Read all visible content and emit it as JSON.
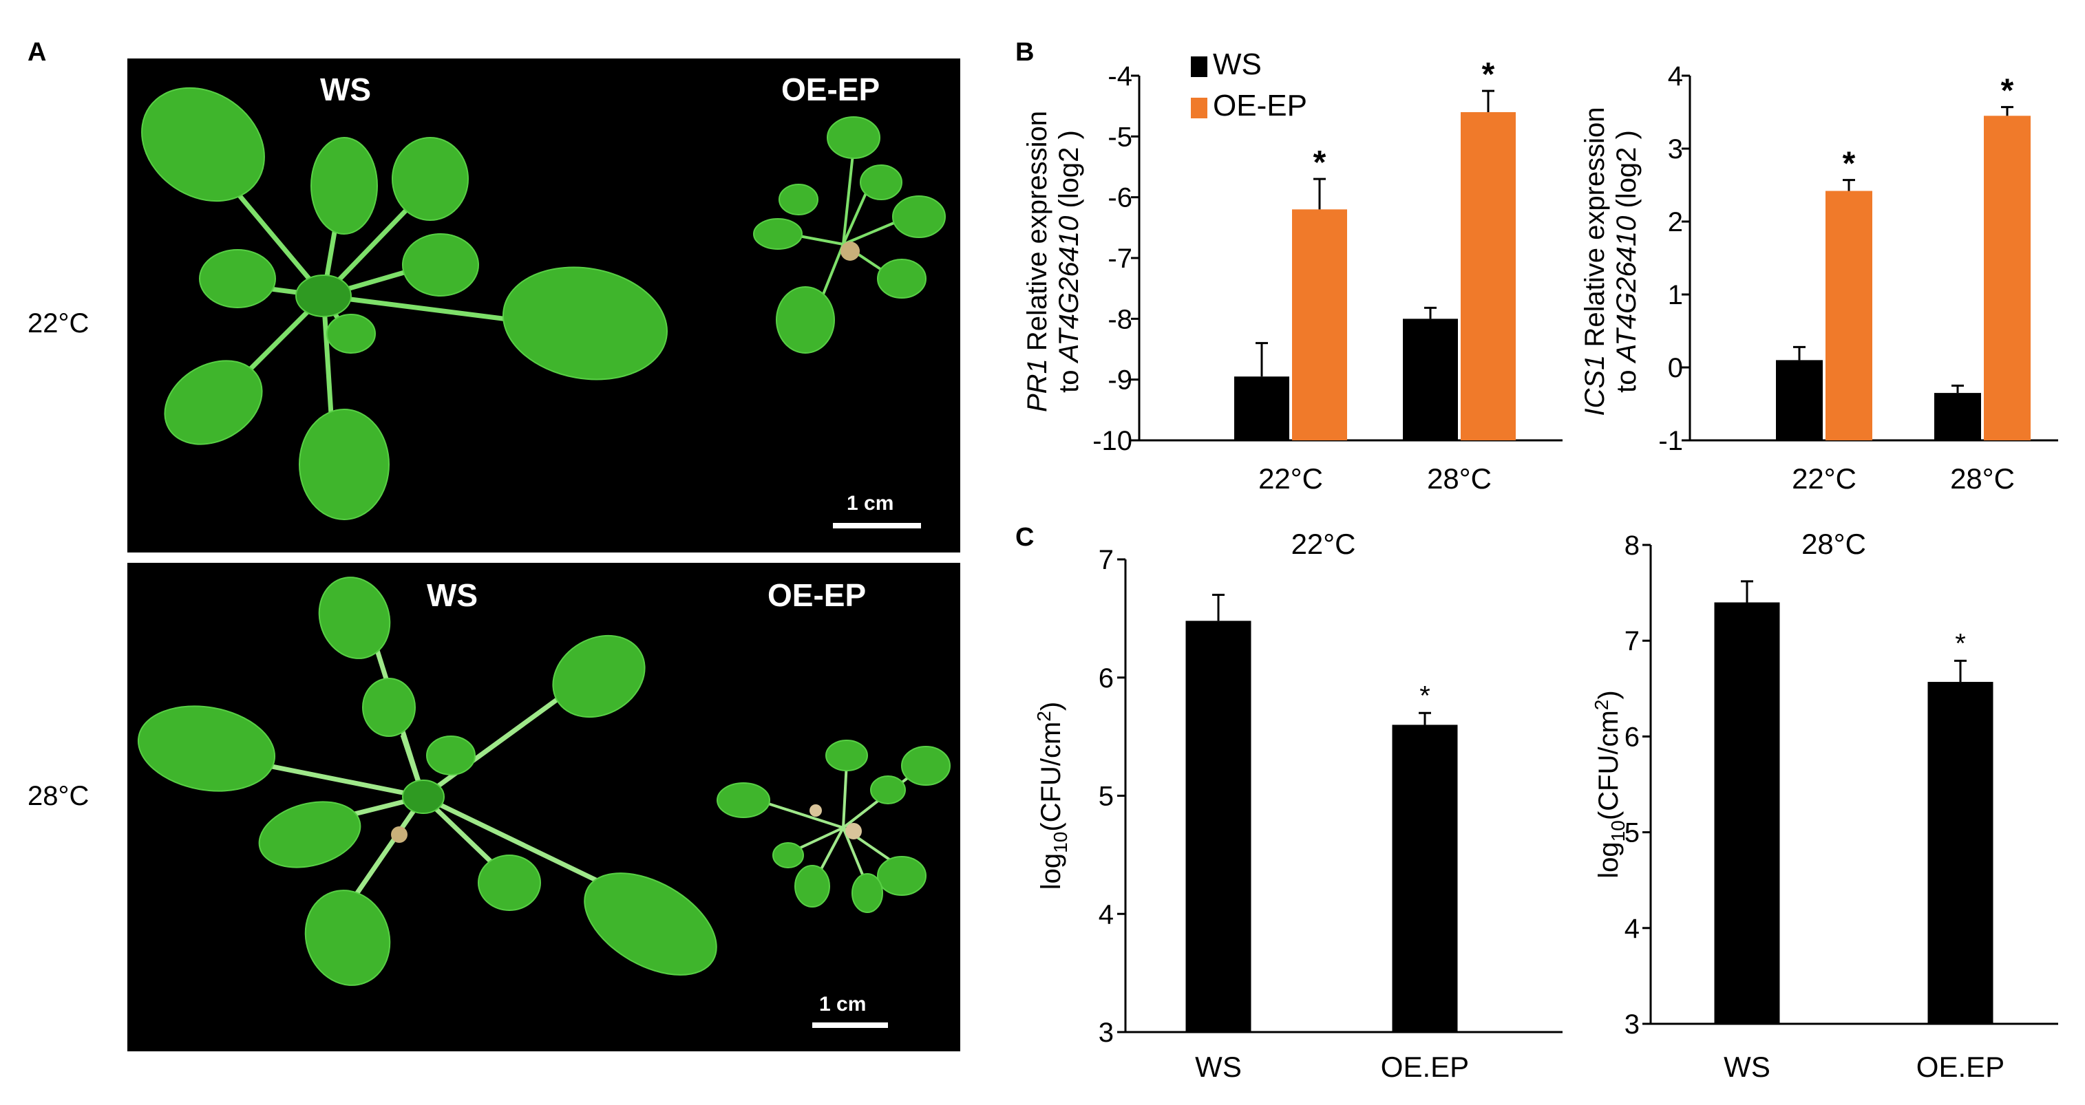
{
  "panel_labels": {
    "a": "A",
    "b": "B",
    "c": "C"
  },
  "panel_a": {
    "row_labels": [
      "22°C",
      "28°C"
    ],
    "column_labels": [
      "WS",
      "OE-EP"
    ],
    "scale_bar_label": "1 cm",
    "plant_color": "#3fb52c"
  },
  "legend": {
    "items": [
      {
        "name": "WS",
        "color": "#000000"
      },
      {
        "name": "OE-EP",
        "color": "#f07a2a"
      }
    ]
  },
  "significance_marker": "*",
  "chart_data": [
    {
      "id": "b1",
      "type": "bar",
      "ylabel_gene": "PR1",
      "ylabel_text": " Relative expression",
      "ylabel_to": "to ",
      "ylabel_ref": "AT4G26410",
      "ylabel_log": " (log2  )",
      "categories": [
        "22°C",
        "28°C"
      ],
      "ylim": [
        -10,
        -4
      ],
      "yticks": [
        -10,
        -9,
        -8,
        -7,
        -6,
        -5,
        -4
      ],
      "ytick_labels": [
        "-10",
        "-9",
        "-8",
        "-7",
        "-6",
        "-5",
        "-4"
      ],
      "series": [
        {
          "name": "WS",
          "color": "#000000",
          "values": [
            -8.95,
            -8.0
          ],
          "errors": [
            0.55,
            0.18
          ],
          "sig": [
            false,
            false
          ]
        },
        {
          "name": "OE-EP",
          "color": "#f07a2a",
          "values": [
            -6.2,
            -4.6
          ],
          "errors": [
            0.5,
            0.35
          ],
          "sig": [
            true,
            true
          ]
        }
      ]
    },
    {
      "id": "b2",
      "type": "bar",
      "ylabel_gene": "ICS1",
      "ylabel_text": " Relative expression",
      "ylabel_to": "to ",
      "ylabel_ref": "AT4G26410",
      "ylabel_log": " (log2  )",
      "categories": [
        "22°C",
        "28°C"
      ],
      "ylim": [
        -1,
        4
      ],
      "yticks": [
        -1,
        0,
        1,
        2,
        3,
        4
      ],
      "ytick_labels": [
        "-1",
        "0",
        "1",
        "2",
        "3",
        "4"
      ],
      "series": [
        {
          "name": "WS",
          "color": "#000000",
          "values": [
            0.1,
            -0.35
          ],
          "errors": [
            0.18,
            0.1
          ],
          "sig": [
            false,
            false
          ]
        },
        {
          "name": "OE-EP",
          "color": "#f07a2a",
          "values": [
            2.42,
            3.45
          ],
          "errors": [
            0.15,
            0.12
          ],
          "sig": [
            true,
            true
          ]
        }
      ]
    },
    {
      "id": "c1",
      "type": "bar",
      "title": "22°C",
      "ylabel": "log10(CFU/cm2)",
      "ylabel_parts": {
        "pre": "log",
        "sub": "10",
        "mid": "(CFU/cm",
        "sup": "2",
        "post": ")"
      },
      "categories": [
        "WS",
        "OE.EP"
      ],
      "ylim": [
        3,
        7
      ],
      "yticks": [
        3,
        4,
        5,
        6,
        7
      ],
      "ytick_labels": [
        "3",
        "4",
        "5",
        "6",
        "7"
      ],
      "values": [
        6.48,
        5.6
      ],
      "errors": [
        0.22,
        0.1
      ],
      "sig": [
        false,
        true
      ],
      "color": "#000000"
    },
    {
      "id": "c2",
      "type": "bar",
      "title": "28°C",
      "ylabel": "log10(CFU/cm2)",
      "ylabel_parts": {
        "pre": "log",
        "sub": "10",
        "mid": "(CFU/cm",
        "sup": "2",
        "post": ")"
      },
      "categories": [
        "WS",
        "OE.EP"
      ],
      "ylim": [
        3,
        8
      ],
      "yticks": [
        3,
        4,
        5,
        6,
        7,
        8
      ],
      "ytick_labels": [
        "3",
        "4",
        "5",
        "6",
        "7",
        "8"
      ],
      "values": [
        7.4,
        6.57
      ],
      "errors": [
        0.22,
        0.22
      ],
      "sig": [
        false,
        true
      ],
      "color": "#000000"
    }
  ]
}
